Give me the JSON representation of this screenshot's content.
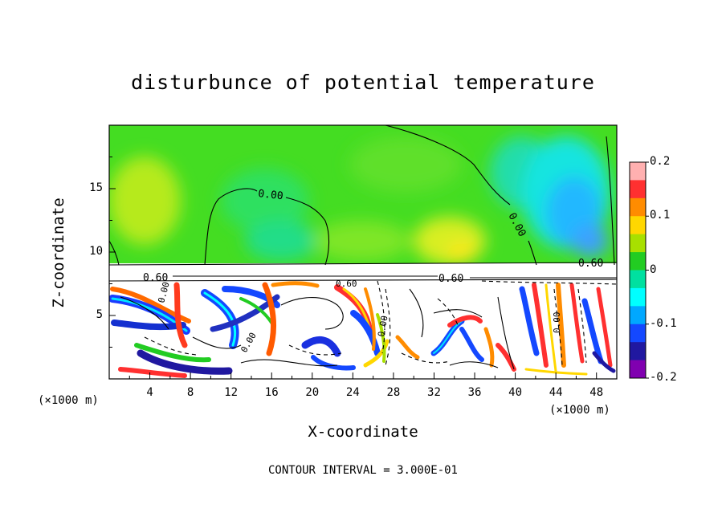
{
  "chart_data": {
    "type": "heatmap",
    "title": "disturbunce of potential temperature",
    "xlabel": "X-coordinate",
    "ylabel": "Z-coordinate",
    "x_unit": "(×1000 m)",
    "xlim": [
      0,
      50
    ],
    "ylim": [
      0,
      20
    ],
    "x_ticks": [
      4,
      8,
      12,
      16,
      20,
      24,
      28,
      32,
      36,
      40,
      44,
      48
    ],
    "y_ticks": [
      5,
      10,
      15
    ],
    "colorbar": {
      "range": [
        -0.2,
        0.2
      ],
      "tick_labels": [
        "0.2",
        "0.1",
        "0",
        "-0.1",
        "-0.2"
      ],
      "tick_values": [
        0.2,
        0.1,
        0,
        -0.1,
        -0.2
      ],
      "colors": [
        "#ffb0b0",
        "#ff3030",
        "#ff8c00",
        "#ffd700",
        "#a8e000",
        "#22cc22",
        "#00e0a0",
        "#00ffff",
        "#00a8ff",
        "#1448ff",
        "#2018a0",
        "#8000b0"
      ]
    },
    "contour_labels": [
      "0.00",
      "0.00",
      "0.60",
      "0.60",
      "0.60",
      "0.00",
      "0.00",
      "0.00",
      "0.00",
      "0.60"
    ],
    "footer": "CONTOUR INTERVAL = 3.000E-01"
  }
}
